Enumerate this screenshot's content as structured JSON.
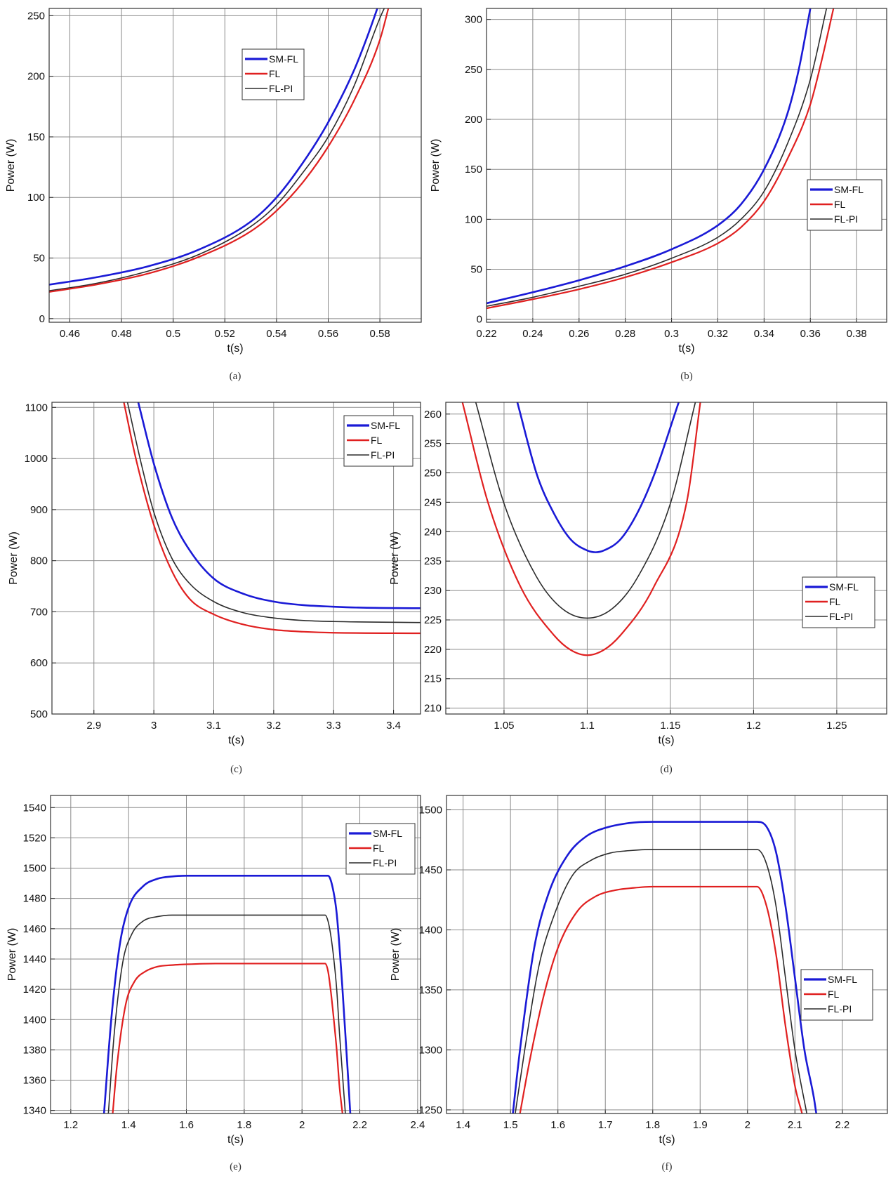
{
  "colors": {
    "SM-FL": "#1a1ad6",
    "FL": "#e02020",
    "FL-PI": "#2b2b2b"
  },
  "chart_data": [
    {
      "caption": "(a)",
      "type": "line",
      "xlabel": "t(s)",
      "ylabel": "Power (W)",
      "xlim": [
        0.452,
        0.596
      ],
      "ylim": [
        -3,
        256
      ],
      "grid": true,
      "legend_position": "top-center",
      "xticks": [
        "0.46",
        "0.48",
        "0.5",
        "0.52",
        "0.54",
        "0.56",
        "0.58"
      ],
      "yticks": [
        "0",
        "50",
        "100",
        "150",
        "200",
        "250"
      ],
      "series": [
        {
          "name": "SM-FL",
          "x": [
            0.452,
            0.47,
            0.49,
            0.51,
            0.53,
            0.54,
            0.55,
            0.56,
            0.57,
            0.575,
            0.58
          ],
          "y": [
            28,
            34,
            43,
            57,
            80,
            100,
            128,
            162,
            205,
            232,
            262
          ]
        },
        {
          "name": "FL",
          "x": [
            0.452,
            0.47,
            0.49,
            0.51,
            0.53,
            0.54,
            0.55,
            0.56,
            0.57,
            0.58,
            0.584
          ],
          "y": [
            22,
            28,
            37,
            51,
            72,
            89,
            112,
            142,
            180,
            230,
            262
          ]
        },
        {
          "name": "FL-PI",
          "x": [
            0.452,
            0.47,
            0.49,
            0.51,
            0.53,
            0.54,
            0.55,
            0.56,
            0.57,
            0.58,
            0.583
          ],
          "y": [
            23,
            29,
            39,
            53,
            76,
            94,
            120,
            150,
            192,
            248,
            262
          ]
        }
      ]
    },
    {
      "caption": "(b)",
      "type": "line",
      "xlabel": "t(s)",
      "ylabel": "Power (W)",
      "xlim": [
        0.22,
        0.393
      ],
      "ylim": [
        -3,
        311
      ],
      "grid": true,
      "legend_position": "right",
      "xticks": [
        "0.22",
        "0.24",
        "0.26",
        "0.28",
        "0.3",
        "0.32",
        "0.34",
        "0.36",
        "0.38"
      ],
      "yticks": [
        "0",
        "50",
        "100",
        "150",
        "200",
        "250",
        "300"
      ],
      "series": [
        {
          "name": "SM-FL",
          "x": [
            0.22,
            0.24,
            0.26,
            0.28,
            0.3,
            0.32,
            0.33,
            0.34,
            0.35,
            0.355,
            0.36
          ],
          "y": [
            16,
            27,
            39,
            53,
            70,
            94,
            115,
            150,
            205,
            250,
            311
          ]
        },
        {
          "name": "FL",
          "x": [
            0.22,
            0.24,
            0.26,
            0.28,
            0.3,
            0.32,
            0.33,
            0.34,
            0.35,
            0.36,
            0.365,
            0.37
          ],
          "y": [
            11,
            20,
            30,
            42,
            57,
            76,
            92,
            118,
            160,
            215,
            260,
            311
          ]
        },
        {
          "name": "FL-PI",
          "x": [
            0.22,
            0.24,
            0.26,
            0.28,
            0.3,
            0.32,
            0.33,
            0.34,
            0.35,
            0.36,
            0.367
          ],
          "y": [
            13,
            22,
            33,
            45,
            61,
            82,
            100,
            128,
            175,
            240,
            311
          ]
        }
      ]
    },
    {
      "caption": "(c)",
      "type": "line",
      "xlabel": "t(s)",
      "ylabel": "Power (W)",
      "xlim": [
        2.83,
        3.445
      ],
      "ylim": [
        500,
        1110
      ],
      "grid": true,
      "legend_position": "top-right",
      "xticks": [
        "2.9",
        "3",
        "3.1",
        "3.2",
        "3.3",
        "3.4"
      ],
      "yticks": [
        "500",
        "600",
        "700",
        "800",
        "900",
        "1000",
        "1100"
      ],
      "series": [
        {
          "name": "SM-FL",
          "x": [
            2.974,
            3.0,
            3.03,
            3.06,
            3.1,
            3.15,
            3.2,
            3.25,
            3.3,
            3.35,
            3.445
          ],
          "y": [
            1110,
            990,
            885,
            820,
            765,
            735,
            720,
            713,
            710,
            708,
            707
          ]
        },
        {
          "name": "FL",
          "x": [
            2.95,
            2.97,
            3.0,
            3.03,
            3.06,
            3.1,
            3.15,
            3.2,
            3.25,
            3.3,
            3.445
          ],
          "y": [
            1110,
            1000,
            870,
            780,
            725,
            695,
            675,
            665,
            661,
            659,
            658
          ]
        },
        {
          "name": "FL-PI",
          "x": [
            2.956,
            2.98,
            3.0,
            3.03,
            3.06,
            3.1,
            3.15,
            3.2,
            3.25,
            3.3,
            3.445
          ],
          "y": [
            1110,
            985,
            895,
            805,
            755,
            720,
            698,
            688,
            683,
            681,
            679
          ]
        }
      ]
    },
    {
      "caption": "(d)",
      "type": "line",
      "xlabel": "t(s)",
      "ylabel": "Power (W)",
      "xlim": [
        1.015,
        1.28
      ],
      "ylim": [
        209,
        262
      ],
      "grid": true,
      "legend_position": "right",
      "xticks": [
        "1.05",
        "1.1",
        "1.15",
        "1.2",
        "1.25"
      ],
      "yticks": [
        "210",
        "215",
        "220",
        "225",
        "230",
        "235",
        "240",
        "245",
        "250",
        "255",
        "260"
      ],
      "series": [
        {
          "name": "SM-FL",
          "x": [
            1.058,
            1.07,
            1.08,
            1.09,
            1.1,
            1.105,
            1.11,
            1.12,
            1.13,
            1.14,
            1.155
          ],
          "y": [
            262,
            249.5,
            243.1,
            238.7,
            236.8,
            236.5,
            236.8,
            238.7,
            243.1,
            249.5,
            262
          ]
        },
        {
          "name": "FL",
          "x": [
            1.025,
            1.04,
            1.06,
            1.08,
            1.09,
            1.1,
            1.11,
            1.12,
            1.14,
            1.16,
            1.168
          ],
          "y": [
            262,
            245.3,
            230.6,
            222.4,
            219.9,
            219.0,
            219.9,
            222.4,
            230.6,
            245.3,
            262
          ]
        },
        {
          "name": "FL-PI",
          "x": [
            1.033,
            1.05,
            1.07,
            1.085,
            1.1,
            1.115,
            1.13,
            1.15,
            1.165
          ],
          "y": [
            262,
            244.8,
            232.1,
            226.9,
            225.3,
            226.9,
            232.1,
            244.8,
            262
          ]
        }
      ]
    },
    {
      "caption": "(e)",
      "type": "line",
      "xlabel": "t(s)",
      "ylabel": "Power (W)",
      "xlim": [
        1.13,
        2.41
      ],
      "ylim": [
        1338,
        1548
      ],
      "grid": true,
      "legend_position": "top-right",
      "xticks": [
        "1.2",
        "1.4",
        "1.6",
        "1.8",
        "2",
        "2.2",
        "2.4"
      ],
      "yticks": [
        "1340",
        "1360",
        "1380",
        "1400",
        "1420",
        "1440",
        "1460",
        "1480",
        "1500",
        "1520",
        "1540"
      ],
      "series": [
        {
          "name": "SM-FL",
          "x": [
            1.315,
            1.34,
            1.37,
            1.4,
            1.45,
            1.5,
            1.55,
            1.6,
            1.7,
            2.09,
            2.105,
            2.12,
            2.14,
            2.16,
            2.167
          ],
          "y": [
            1338,
            1400,
            1450,
            1474,
            1488,
            1493,
            1494.5,
            1495,
            1495,
            1495,
            1488,
            1470,
            1420,
            1360,
            1338
          ]
        },
        {
          "name": "FL",
          "x": [
            1.345,
            1.36,
            1.39,
            1.42,
            1.46,
            1.5,
            1.55,
            1.6,
            1.7,
            2.08,
            2.09,
            2.1,
            2.11,
            2.12,
            2.13,
            2.14
          ],
          "y": [
            1338,
            1370,
            1410,
            1425,
            1432,
            1435,
            1436,
            1436.5,
            1437,
            1437,
            1432,
            1418,
            1400,
            1380,
            1355,
            1338
          ]
        },
        {
          "name": "FL-PI",
          "x": [
            1.33,
            1.35,
            1.38,
            1.41,
            1.45,
            1.5,
            1.55,
            1.6,
            1.7,
            2.08,
            2.09,
            2.1,
            2.11,
            2.12,
            2.13,
            2.15
          ],
          "y": [
            1338,
            1390,
            1438,
            1456,
            1465,
            1468,
            1469,
            1469,
            1469,
            1469,
            1465,
            1455,
            1440,
            1420,
            1390,
            1338
          ]
        }
      ]
    },
    {
      "caption": "(f)",
      "type": "line",
      "xlabel": "t(s)",
      "ylabel": "Power (W)",
      "xlim": [
        1.365,
        2.295
      ],
      "ylim": [
        1247,
        1512
      ],
      "grid": true,
      "legend_position": "bottom-right",
      "xticks": [
        "1.4",
        "1.5",
        "1.6",
        "1.7",
        "1.8",
        "1.9",
        "2",
        "2.1",
        "2.2"
      ],
      "yticks": [
        "1250",
        "1300",
        "1350",
        "1400",
        "1450",
        "1500"
      ],
      "series": [
        {
          "name": "SM-FL",
          "x": [
            1.505,
            1.52,
            1.55,
            1.58,
            1.62,
            1.66,
            1.7,
            1.75,
            1.8,
            2.02,
            2.04,
            2.06,
            2.08,
            2.1,
            2.12,
            2.14,
            2.145
          ],
          "y": [
            1247,
            1300,
            1385,
            1430,
            1462,
            1478,
            1485,
            1489,
            1490,
            1490,
            1486,
            1465,
            1420,
            1360,
            1300,
            1260,
            1247
          ]
        },
        {
          "name": "FL",
          "x": [
            1.52,
            1.54,
            1.57,
            1.6,
            1.64,
            1.68,
            1.72,
            1.76,
            1.8,
            2.02,
            2.04,
            2.06,
            2.08,
            2.1,
            2.115
          ],
          "y": [
            1247,
            1290,
            1345,
            1385,
            1415,
            1428,
            1433,
            1435,
            1436,
            1436,
            1420,
            1380,
            1320,
            1270,
            1247
          ]
        },
        {
          "name": "FL-PI",
          "x": [
            1.51,
            1.53,
            1.56,
            1.59,
            1.63,
            1.67,
            1.71,
            1.75,
            1.8,
            2.02,
            2.04,
            2.06,
            2.08,
            2.1,
            2.125
          ],
          "y": [
            1247,
            1300,
            1370,
            1410,
            1445,
            1458,
            1464,
            1466,
            1467,
            1467,
            1455,
            1420,
            1360,
            1300,
            1247
          ]
        }
      ]
    }
  ]
}
